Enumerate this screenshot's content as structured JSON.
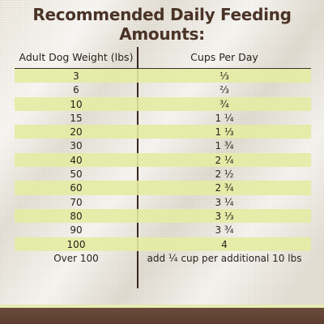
{
  "title": "Recommended Daily Feeding Amounts:",
  "table": {
    "headers": [
      "Adult Dog Weight (lbs)",
      "Cups Per Day"
    ],
    "rows": [
      [
        "3",
        "⅓"
      ],
      [
        "6",
        "⅔"
      ],
      [
        "10",
        "¾"
      ],
      [
        "15",
        "1 ¼"
      ],
      [
        "20",
        "1 ⅓"
      ],
      [
        "30",
        "1 ¾"
      ],
      [
        "40",
        "2 ¼"
      ],
      [
        "50",
        "2 ½"
      ],
      [
        "60",
        "2 ¾"
      ],
      [
        "70",
        "3 ¼"
      ],
      [
        "80",
        "3 ⅓"
      ],
      [
        "90",
        "3 ¾"
      ],
      [
        "100",
        "4"
      ],
      [
        "Over 100",
        "add ¼ cup per additional 10 lbs"
      ]
    ]
  },
  "colors": {
    "title": "#4a3326",
    "row_highlight": "#e4eca0",
    "divider": "#3a2a22",
    "footer_band": "#5b3d30"
  }
}
